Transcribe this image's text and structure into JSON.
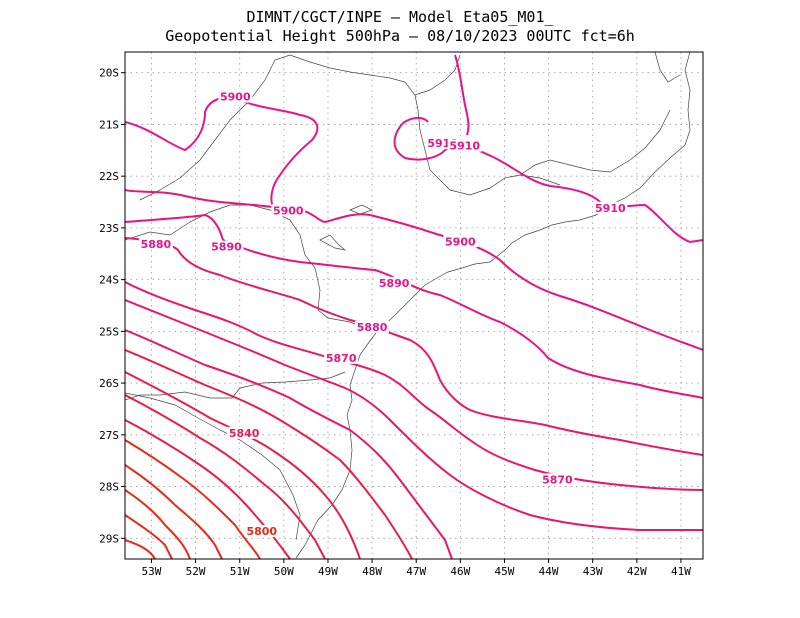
{
  "title": {
    "line1": "DIMNT/CGCT/INPE –  Model Eta05_M01_",
    "line2": "Geopotential Height 500hPa –  08/10/2023 00UTC fct=6h"
  },
  "map": {
    "lon_range": [
      -53.6,
      -40.5
    ],
    "lat_range": [
      -29.4,
      -19.6
    ],
    "lon_ticks": [
      "53W",
      "52W",
      "51W",
      "50W",
      "49W",
      "48W",
      "47W",
      "46W",
      "45W",
      "44W",
      "43W",
      "42W",
      "41W"
    ],
    "lat_ticks": [
      "20S",
      "21S",
      "22S",
      "23S",
      "24S",
      "25S",
      "26S",
      "27S",
      "28S",
      "29S"
    ],
    "grid": true,
    "colors": {
      "frame": "#000000",
      "grid": "#9a9a9a",
      "coast": "#444444"
    }
  },
  "contours": [
    {
      "level": "5900",
      "color": "#e8148c",
      "labels": [
        {
          "lon": -51.1,
          "lat": -20.5
        },
        {
          "lon": -49.9,
          "lat": -22.7
        }
      ]
    },
    {
      "level": "5910",
      "color": "#e8148c",
      "labels": [
        {
          "lon": -46.4,
          "lat": -21.4
        },
        {
          "lon": -45.9,
          "lat": -21.45
        },
        {
          "lon": -42.6,
          "lat": -22.65
        }
      ]
    },
    {
      "level": "5900",
      "color": "#e8148c",
      "labels": [
        {
          "lon": -46.0,
          "lat": -23.3
        }
      ]
    },
    {
      "level": "5890",
      "color": "#e8148c",
      "labels": [
        {
          "lon": -51.3,
          "lat": -23.4
        },
        {
          "lon": -47.5,
          "lat": -24.1
        }
      ]
    },
    {
      "level": "5880",
      "color": "#e8148c",
      "labels": [
        {
          "lon": -52.9,
          "lat": -23.35
        },
        {
          "lon": -48.0,
          "lat": -24.95
        }
      ]
    },
    {
      "level": "5870",
      "color": "#e81878",
      "labels": [
        {
          "lon": -48.7,
          "lat": -25.55
        },
        {
          "lon": -43.8,
          "lat": -27.9
        }
      ]
    },
    {
      "level": "5840",
      "color": "#e81e50",
      "labels": [
        {
          "lon": -50.9,
          "lat": -27.0
        }
      ]
    },
    {
      "level": "5800",
      "color": "#e82a18",
      "labels": [
        {
          "lon": -50.5,
          "lat": -28.9
        }
      ]
    }
  ]
}
